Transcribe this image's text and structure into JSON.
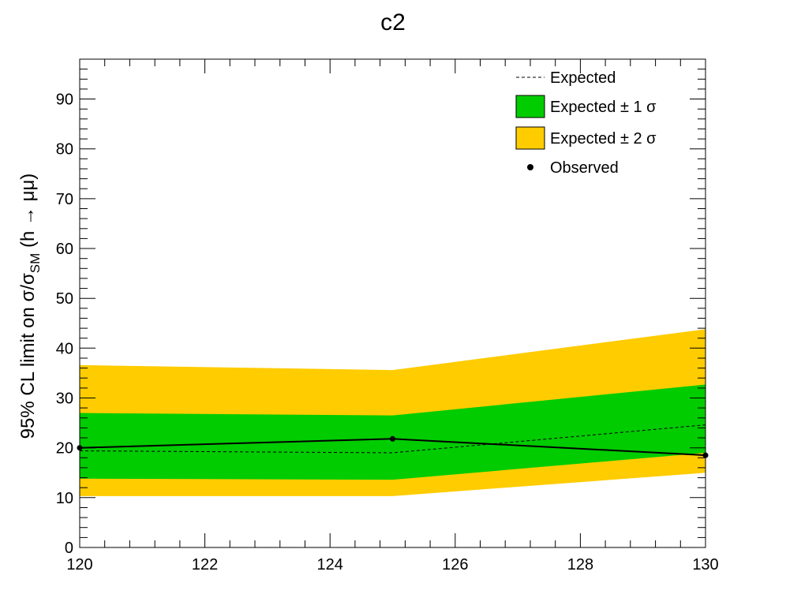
{
  "chart_data": {
    "type": "line",
    "title": "c2",
    "xlabel": "",
    "ylabel": {
      "prefix": "95% CL limit on σ/σ",
      "subscript": "SM",
      "suffix": " (h → μμ)"
    },
    "xlim": [
      120,
      130
    ],
    "ylim": [
      0,
      98
    ],
    "x_ticks": [
      120,
      122,
      124,
      126,
      128,
      130
    ],
    "y_ticks": [
      0,
      10,
      20,
      30,
      40,
      50,
      60,
      70,
      80,
      90
    ],
    "grid": false,
    "legend_position": "top-right",
    "x": [
      120,
      125,
      130
    ],
    "series": [
      {
        "name": "Expected",
        "values": [
          19.4,
          19.0,
          24.6
        ]
      },
      {
        "name": "Observed",
        "values": [
          20.0,
          21.8,
          18.5
        ]
      }
    ],
    "bands": [
      {
        "name": "Expected ± 2 σ",
        "lower": [
          10.3,
          10.3,
          15.0
        ],
        "upper": [
          36.6,
          35.6,
          43.8
        ]
      },
      {
        "name": "Expected ± 1 σ",
        "lower": [
          13.8,
          13.6,
          19.0
        ],
        "upper": [
          27.0,
          26.5,
          32.7
        ]
      }
    ],
    "legend": [
      {
        "label": "Expected",
        "style": "dashed-line"
      },
      {
        "label": "Expected ± 1 σ",
        "style": "fill-green"
      },
      {
        "label": "Expected ± 2 σ",
        "style": "fill-yellow"
      },
      {
        "label": "Observed",
        "style": "marker"
      }
    ]
  },
  "colors": {
    "band_1sigma": "#00cc00",
    "band_2sigma": "#ffcc00",
    "observed": "#000000",
    "expected": "#000000",
    "frame": "#000000"
  }
}
